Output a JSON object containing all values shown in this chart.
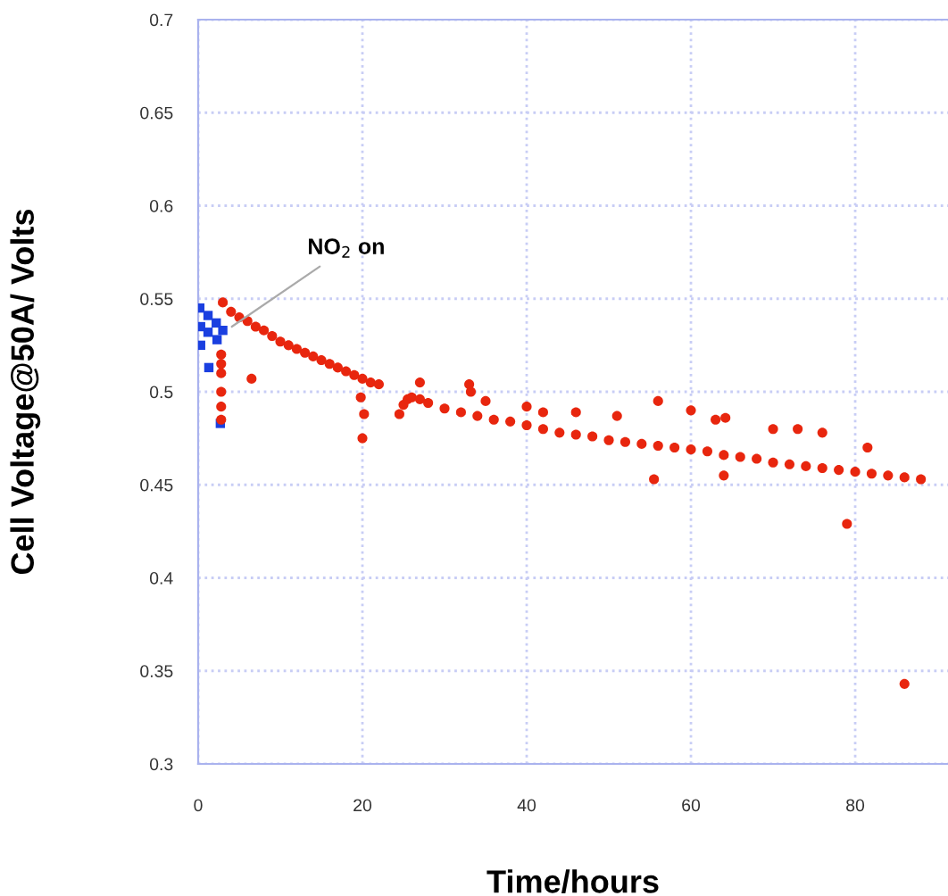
{
  "chart_data": {
    "type": "scatter",
    "xlabel": "Time/hours",
    "ylabel": "Cell Voltage@50A/ Volts",
    "xlim": [
      0,
      91.3
    ],
    "ylim": [
      0.3,
      0.7
    ],
    "xticks": [
      0,
      20,
      40,
      60,
      80
    ],
    "yticks": [
      0.3,
      0.35,
      0.4,
      0.45,
      0.5,
      0.55,
      0.6,
      0.65,
      0.7
    ],
    "grid": true,
    "legend": false,
    "annotations": [
      {
        "text": "NO$_{2}$ on",
        "x": 4.1,
        "y": 0.535
      }
    ],
    "series": [
      {
        "color": "#1a3fe0",
        "marker": "square",
        "x": [
          0.2,
          0.3,
          1.2,
          1.2,
          2.2,
          2.3,
          3.0,
          0.3,
          1.3,
          2.7
        ],
        "values": [
          0.545,
          0.535,
          0.541,
          0.532,
          0.537,
          0.528,
          0.533,
          0.525,
          0.513,
          0.483
        ]
      },
      {
        "color": "#e8260e",
        "marker": "circle",
        "x": [
          3.0,
          4,
          5,
          6,
          7,
          8,
          9,
          10,
          11,
          12,
          13,
          14,
          15,
          16,
          17,
          18,
          19,
          20,
          21,
          22,
          2.8,
          2.8,
          2.8,
          2.8,
          2.8,
          2.8,
          6.5,
          19.8,
          20.2,
          20.0,
          24.5,
          25,
          25.5,
          26,
          27,
          28,
          30,
          32,
          34,
          36,
          38,
          40,
          42,
          44,
          46,
          48,
          50,
          52,
          54,
          56,
          58,
          60,
          62,
          64,
          66,
          68,
          70,
          72,
          74,
          76,
          78,
          80,
          82,
          84,
          86,
          88,
          27,
          33,
          33.2,
          35,
          40,
          42,
          46,
          51,
          56,
          60,
          63,
          64.2,
          70,
          73,
          76,
          55.5,
          64,
          79,
          81.5,
          86
        ],
        "values": [
          0.548,
          0.543,
          0.54,
          0.538,
          0.535,
          0.533,
          0.53,
          0.527,
          0.525,
          0.523,
          0.521,
          0.519,
          0.517,
          0.515,
          0.513,
          0.511,
          0.509,
          0.507,
          0.505,
          0.504,
          0.52,
          0.515,
          0.51,
          0.5,
          0.492,
          0.485,
          0.507,
          0.497,
          0.488,
          0.475,
          0.488,
          0.493,
          0.496,
          0.497,
          0.496,
          0.494,
          0.491,
          0.489,
          0.487,
          0.485,
          0.484,
          0.482,
          0.48,
          0.478,
          0.477,
          0.476,
          0.474,
          0.473,
          0.472,
          0.471,
          0.47,
          0.469,
          0.468,
          0.466,
          0.465,
          0.464,
          0.462,
          0.461,
          0.46,
          0.459,
          0.458,
          0.457,
          0.456,
          0.455,
          0.454,
          0.453,
          0.505,
          0.504,
          0.5,
          0.495,
          0.492,
          0.489,
          0.489,
          0.487,
          0.495,
          0.49,
          0.485,
          0.486,
          0.48,
          0.48,
          0.478,
          0.453,
          0.455,
          0.429,
          0.47,
          0.343
        ]
      }
    ]
  }
}
